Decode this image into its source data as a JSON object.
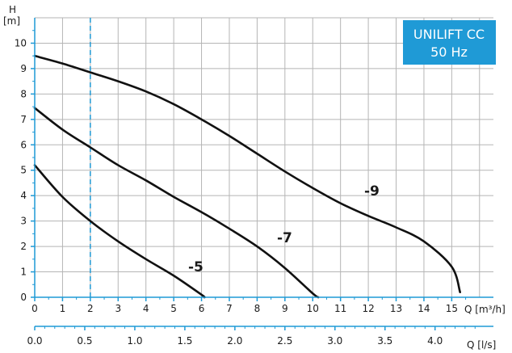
{
  "chart_data": {
    "type": "line",
    "title_badge": [
      "UNILIFT CC",
      "50 Hz"
    ],
    "badge_color": "#1f9ad6",
    "ylabel": "H",
    "yunit": "[m]",
    "xlabel": "Q [m³/h]",
    "xlabel_secondary": "Q [l/s]",
    "xlim": [
      0,
      16.5
    ],
    "ylim": [
      0,
      11
    ],
    "xticks": [
      0,
      1,
      2,
      3,
      4,
      5,
      6,
      7,
      8,
      9,
      10,
      11,
      12,
      13,
      14,
      15
    ],
    "xtick_labels": [
      "0",
      "1",
      "2",
      "3",
      "4",
      "5",
      "6",
      "7",
      "8",
      "9",
      "10",
      "11",
      "12",
      "13",
      "14",
      "15"
    ],
    "yticks": [
      0,
      1,
      2,
      3,
      4,
      5,
      6,
      7,
      8,
      9,
      10
    ],
    "ytick_labels": [
      "0",
      "1",
      "2",
      "3",
      "4",
      "5",
      "6",
      "7",
      "8",
      "9",
      "10"
    ],
    "secondary_ticks": [
      0,
      0.5,
      1.0,
      1.5,
      2.0,
      2.5,
      3.0,
      3.5,
      4.0
    ],
    "secondary_tick_labels": [
      "0.0",
      "0.5",
      "1.0",
      "1.5",
      "2.0",
      "2.5",
      "3.0",
      "3.5",
      "4.0"
    ],
    "reference_line_x": 2,
    "reference_line_color": "#1f9ad6",
    "grid": true,
    "series": [
      {
        "name": "-9",
        "x": [
          0,
          1,
          2,
          3,
          4,
          5,
          6,
          7,
          8,
          9,
          10,
          11,
          12,
          13,
          14,
          15,
          15.3
        ],
        "y": [
          9.5,
          9.2,
          8.85,
          8.5,
          8.1,
          7.6,
          7.0,
          6.35,
          5.65,
          4.95,
          4.3,
          3.7,
          3.2,
          2.75,
          2.2,
          1.2,
          0.2
        ]
      },
      {
        "name": "-7",
        "x": [
          0,
          1,
          2,
          3,
          4,
          5,
          6,
          7,
          8,
          9,
          10,
          10.2
        ],
        "y": [
          7.45,
          6.6,
          5.9,
          5.2,
          4.6,
          3.95,
          3.35,
          2.7,
          2.0,
          1.15,
          0.15,
          0.0
        ]
      },
      {
        "name": "-5",
        "x": [
          0,
          1,
          2,
          3,
          4,
          5,
          6,
          6.1
        ],
        "y": [
          5.2,
          3.95,
          3.0,
          2.2,
          1.5,
          0.85,
          0.1,
          0.0
        ]
      }
    ]
  }
}
